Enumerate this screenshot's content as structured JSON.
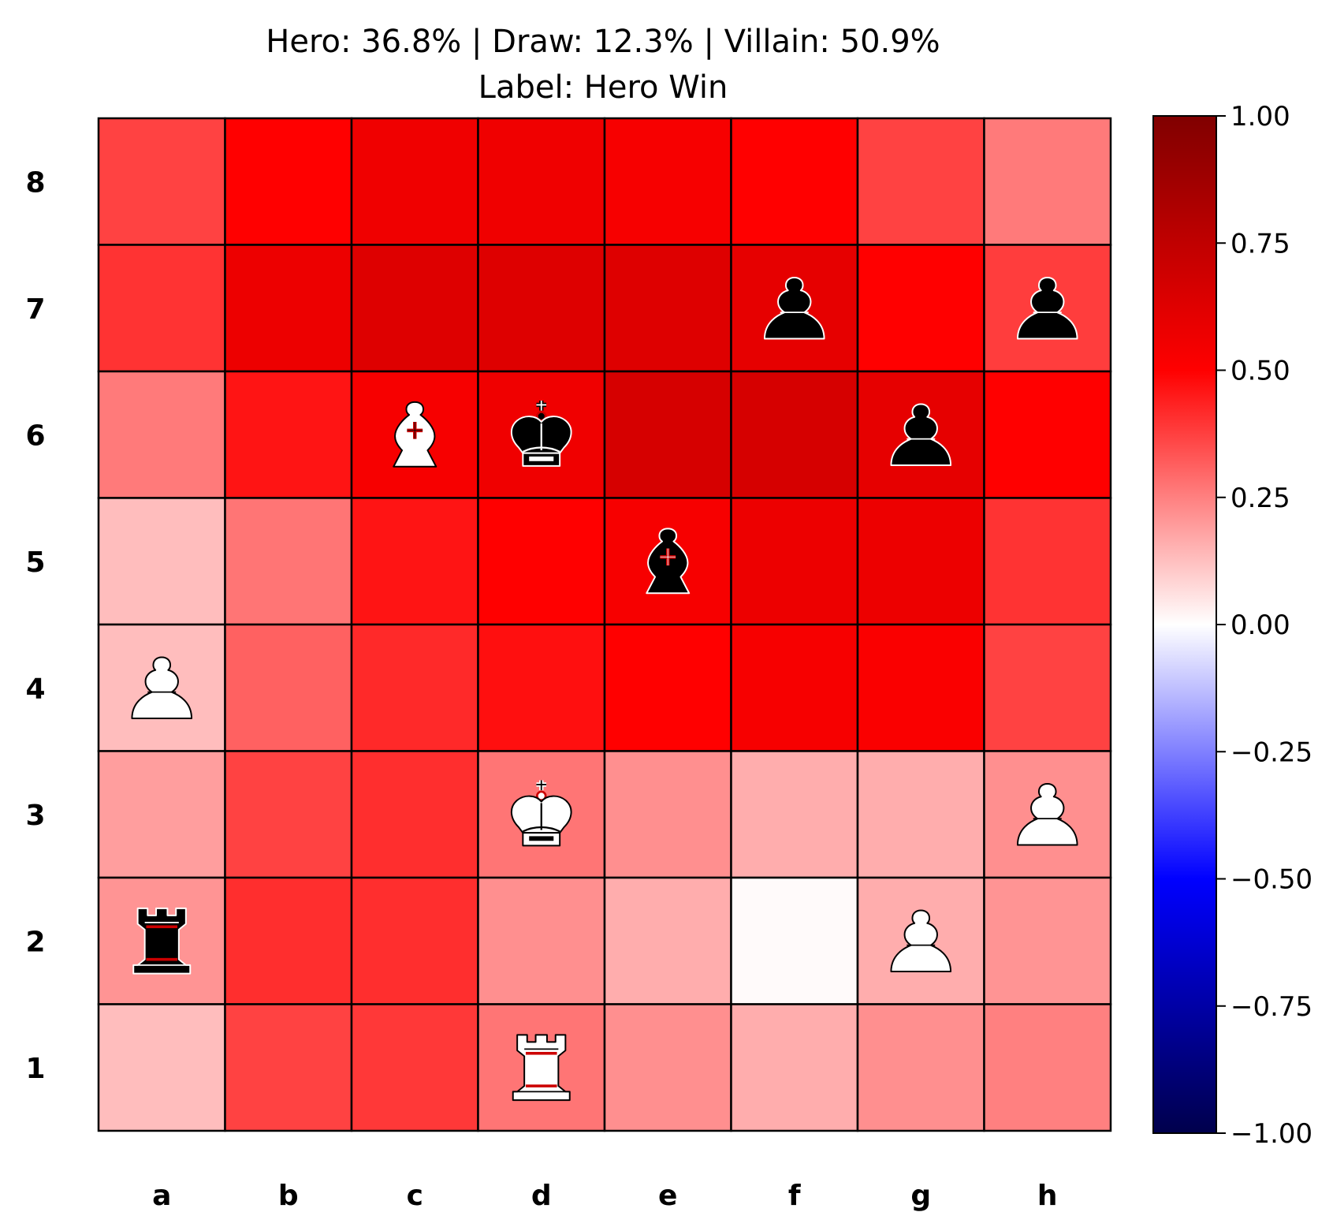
{
  "title": {
    "line1": "Hero: 36.8% | Draw: 12.3% | Villain: 50.9%",
    "line2": "Label: Hero Win"
  },
  "colors": {
    "cmap": "seismic",
    "positive": "#ff0000",
    "negative": "#0000ff",
    "zero": "#ffffff",
    "grid": "#000000",
    "white_piece": "#ffffff",
    "black_piece": "#000000",
    "cross_accent": "#cc0000"
  },
  "chart_data": {
    "type": "heatmap",
    "title": "Hero: 36.8% | Draw: 12.3% | Villain: 50.9%\nLabel: Hero Win",
    "files": [
      "a",
      "b",
      "c",
      "d",
      "e",
      "f",
      "g",
      "h"
    ],
    "ranks": [
      "8",
      "7",
      "6",
      "5",
      "4",
      "3",
      "2",
      "1"
    ],
    "values": [
      [
        0.37,
        0.5,
        0.56,
        0.56,
        0.53,
        0.5,
        0.37,
        0.26
      ],
      [
        0.4,
        0.57,
        0.63,
        0.63,
        0.63,
        0.6,
        0.5,
        0.38
      ],
      [
        0.26,
        0.46,
        0.53,
        0.56,
        0.66,
        0.66,
        0.6,
        0.5
      ],
      [
        0.13,
        0.27,
        0.46,
        0.5,
        0.53,
        0.57,
        0.57,
        0.4
      ],
      [
        0.13,
        0.31,
        0.42,
        0.47,
        0.5,
        0.53,
        0.52,
        0.37
      ],
      [
        0.19,
        0.37,
        0.41,
        0.27,
        0.22,
        0.16,
        0.16,
        0.22
      ],
      [
        0.21,
        0.41,
        0.41,
        0.22,
        0.16,
        0.01,
        0.16,
        0.21
      ],
      [
        0.13,
        0.37,
        0.39,
        0.27,
        0.22,
        0.16,
        0.22,
        0.25
      ]
    ],
    "vmin": -1.0,
    "vmax": 1.0,
    "colorbar_ticks": [
      1.0,
      0.75,
      0.5,
      0.25,
      0.0,
      -0.25,
      -0.5,
      -0.75,
      -1.0
    ],
    "colorbar_tick_labels": [
      "1.00",
      "0.75",
      "0.50",
      "0.25",
      "0.00",
      "−0.25",
      "−0.50",
      "−0.75",
      "−1.00"
    ],
    "pieces": [
      {
        "square": "f7",
        "piece": "pawn",
        "color": "black"
      },
      {
        "square": "h7",
        "piece": "pawn",
        "color": "black"
      },
      {
        "square": "c6",
        "piece": "bishop",
        "color": "white"
      },
      {
        "square": "d6",
        "piece": "king",
        "color": "black"
      },
      {
        "square": "g6",
        "piece": "pawn",
        "color": "black"
      },
      {
        "square": "e5",
        "piece": "bishop",
        "color": "black"
      },
      {
        "square": "a4",
        "piece": "pawn",
        "color": "white"
      },
      {
        "square": "d3",
        "piece": "king",
        "color": "white"
      },
      {
        "square": "h3",
        "piece": "pawn",
        "color": "white"
      },
      {
        "square": "a2",
        "piece": "rook",
        "color": "black"
      },
      {
        "square": "g2",
        "piece": "pawn",
        "color": "white"
      },
      {
        "square": "d1",
        "piece": "rook",
        "color": "white"
      }
    ]
  }
}
